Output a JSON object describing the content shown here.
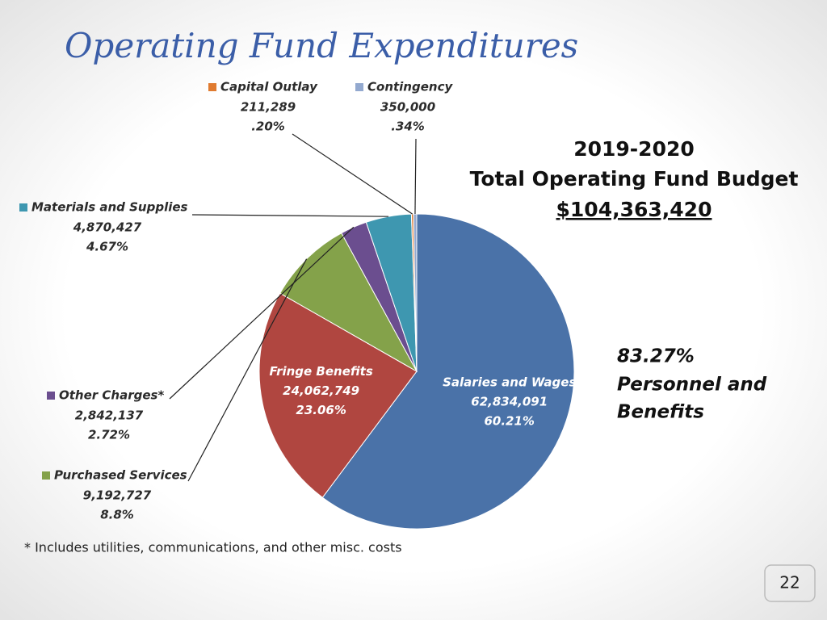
{
  "chart_data": {
    "type": "pie",
    "title": "Operating Fund Expenditures",
    "categories": [
      "Salaries and Wages",
      "Fringe Benefits",
      "Purchased Services",
      "Other Charges*",
      "Materials and Supplies",
      "Capital Outlay",
      "Contingency"
    ],
    "values": [
      62834091,
      24062749,
      9192727,
      2842137,
      4870427,
      211289,
      350000
    ],
    "value_labels": [
      "62,834,091",
      "24,062,749",
      "9,192,727",
      "2,842,137",
      "4,870,427",
      "211,289",
      "350,000"
    ],
    "percents": [
      60.21,
      23.06,
      8.8,
      2.72,
      4.67,
      0.2,
      0.34
    ],
    "percent_labels": [
      "60.21%",
      "23.06%",
      "8.8%",
      "2.72%",
      "4.67%",
      ".20%",
      ".34%"
    ],
    "colors": [
      "#4a72a8",
      "#b04640",
      "#84a24a",
      "#6b4e8f",
      "#3e97b0",
      "#e07b30",
      "#93a9cf"
    ],
    "budget_year": "2019-2020",
    "budget_label": "Total Operating Fund Budget",
    "budget_total": "$104,363,420",
    "personnel_percent": "83.27%",
    "personnel_lines": [
      "Personnel and",
      "Benefits"
    ],
    "footnote": "* Includes utilities, communications, and other misc. costs",
    "page_number": "22"
  }
}
